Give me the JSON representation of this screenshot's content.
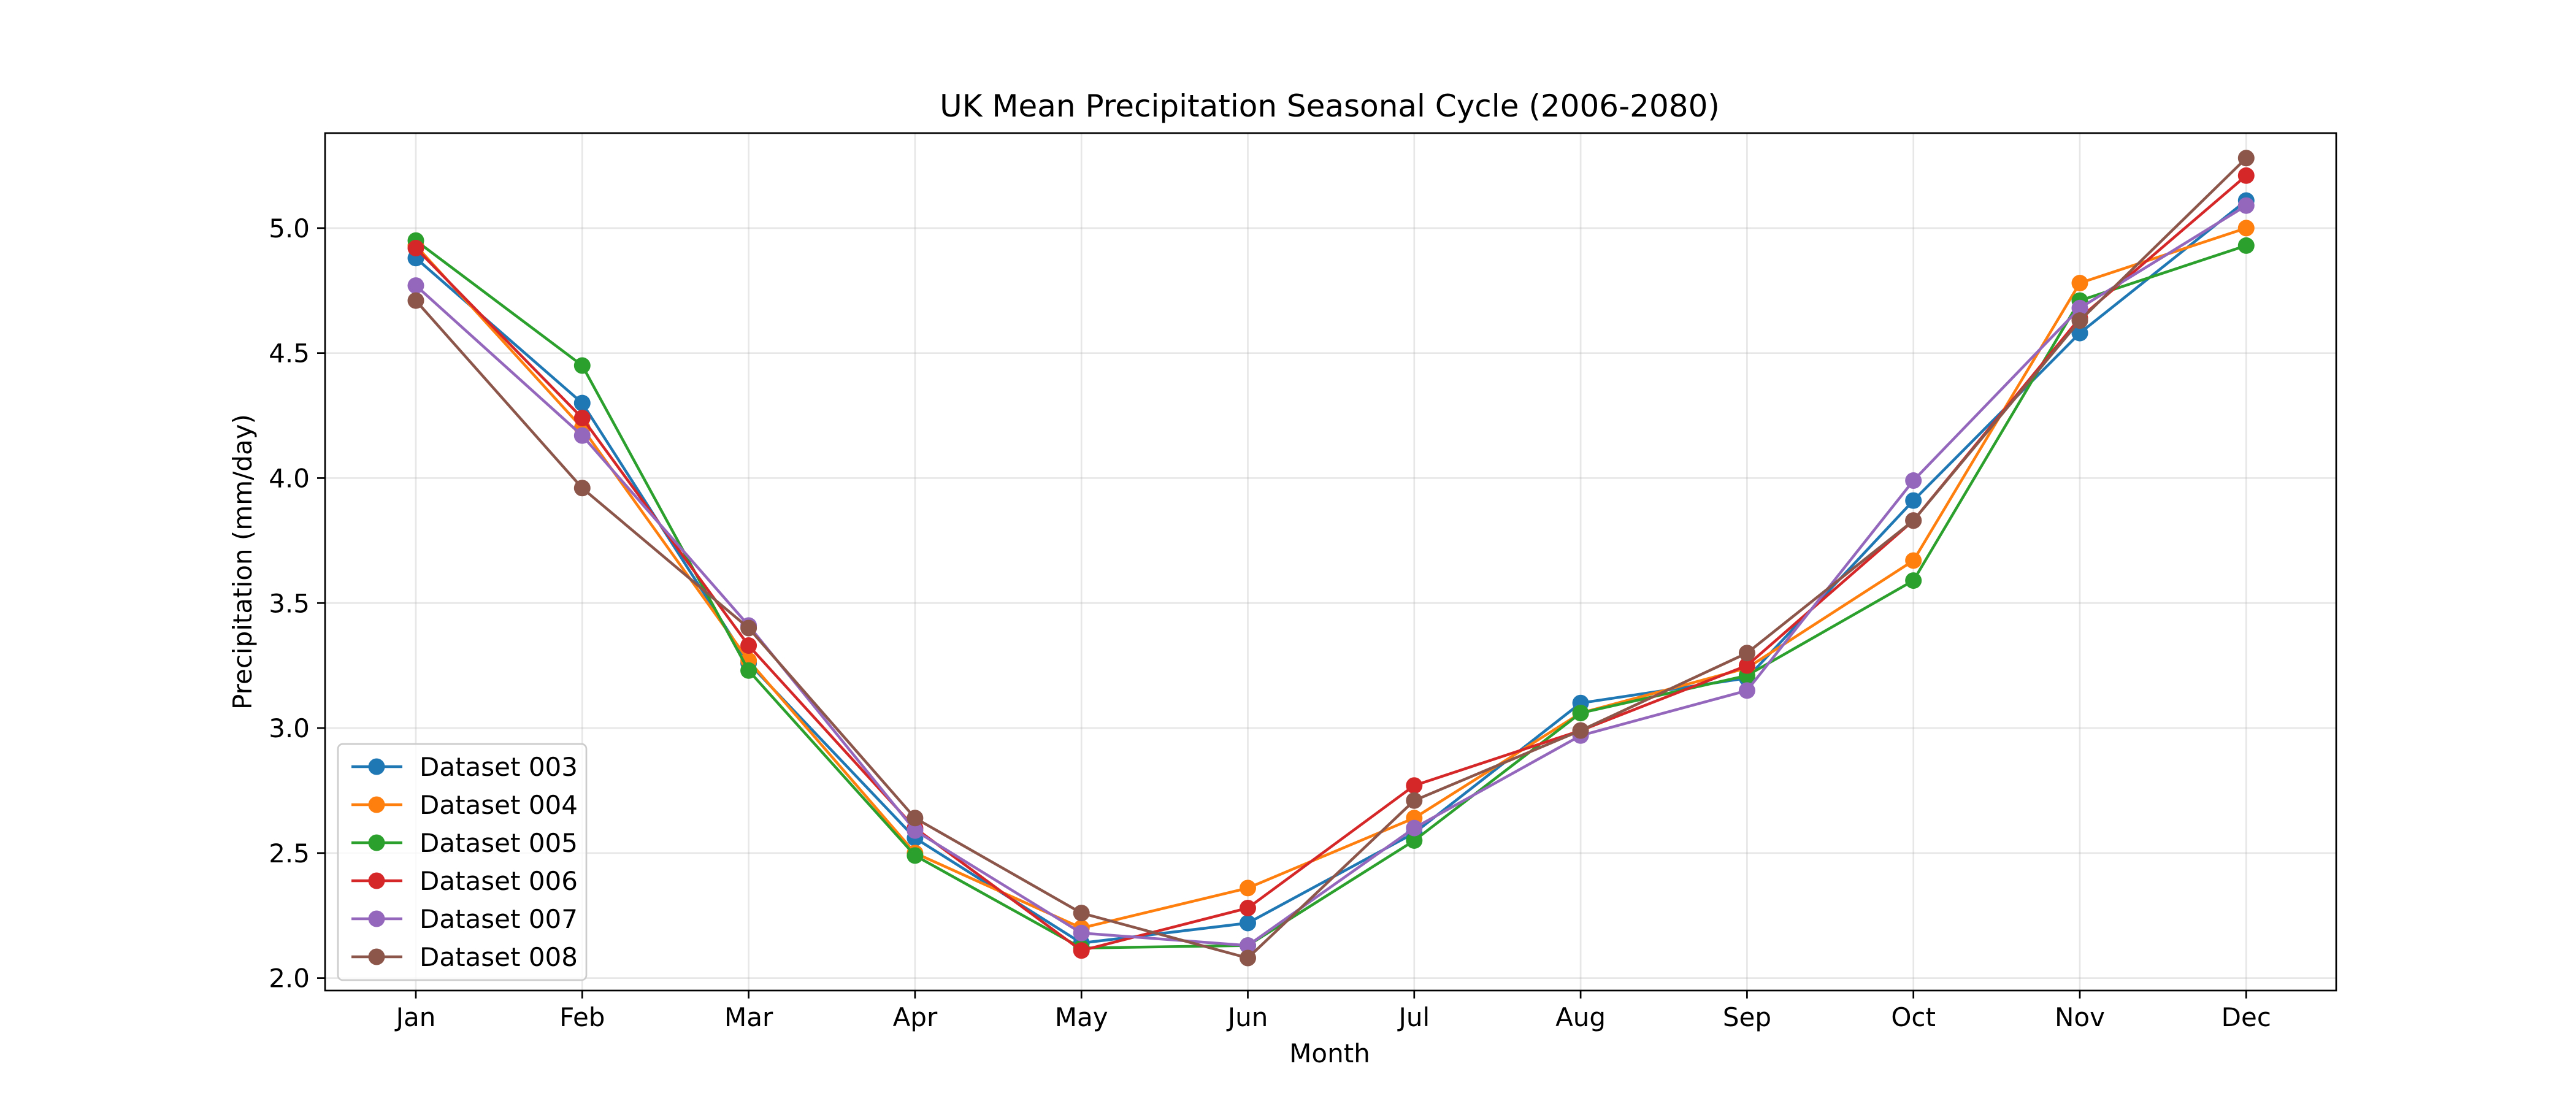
{
  "chart_data": {
    "type": "line",
    "title": "UK Mean Precipitation Seasonal Cycle (2006-2080)",
    "xlabel": "Month",
    "ylabel": "Precipitation (mm/day)",
    "categories": [
      "Jan",
      "Feb",
      "Mar",
      "Apr",
      "May",
      "Jun",
      "Jul",
      "Aug",
      "Sep",
      "Oct",
      "Nov",
      "Dec"
    ],
    "ylim": [
      1.95,
      5.38
    ],
    "yticks": [
      "2.0",
      "2.5",
      "3.0",
      "3.5",
      "4.0",
      "4.5",
      "5.0"
    ],
    "grid": true,
    "legend": "lower-left",
    "series": [
      {
        "name": "Dataset 003",
        "color": "#1f77b4",
        "values": [
          4.88,
          4.3,
          3.26,
          2.56,
          2.14,
          2.22,
          2.58,
          3.1,
          3.2,
          3.91,
          4.58,
          5.11
        ]
      },
      {
        "name": "Dataset 004",
        "color": "#ff7f0e",
        "values": [
          4.93,
          4.2,
          3.27,
          2.5,
          2.2,
          2.36,
          2.64,
          3.06,
          3.24,
          3.67,
          4.78,
          5.0
        ]
      },
      {
        "name": "Dataset 005",
        "color": "#2ca02c",
        "values": [
          4.95,
          4.45,
          3.23,
          2.49,
          2.12,
          2.13,
          2.55,
          3.06,
          3.21,
          3.59,
          4.71,
          4.93
        ]
      },
      {
        "name": "Dataset 006",
        "color": "#d62728",
        "values": [
          4.92,
          4.24,
          3.33,
          2.6,
          2.11,
          2.28,
          2.77,
          2.99,
          3.25,
          3.83,
          4.64,
          5.21
        ]
      },
      {
        "name": "Dataset 007",
        "color": "#9467bd",
        "values": [
          4.77,
          4.17,
          3.41,
          2.59,
          2.18,
          2.13,
          2.6,
          2.97,
          3.15,
          3.99,
          4.68,
          5.09
        ]
      },
      {
        "name": "Dataset 008",
        "color": "#8c564b",
        "values": [
          4.71,
          3.96,
          3.4,
          2.64,
          2.26,
          2.08,
          2.71,
          2.99,
          3.3,
          3.83,
          4.63,
          5.28
        ]
      }
    ]
  }
}
